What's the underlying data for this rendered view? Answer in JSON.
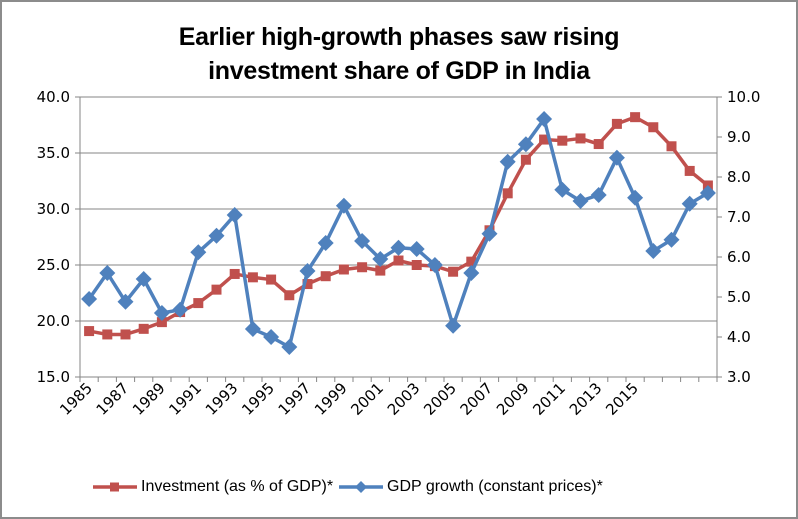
{
  "chart_data": {
    "type": "line",
    "title": "Earlier high-growth phases saw rising investment share of GDP in India",
    "title_lines": [
      "Earlier high-growth phases saw rising",
      "investment share of GDP in India"
    ],
    "xlabel": "",
    "ylabel_left": "",
    "ylabel_right": "",
    "categories": [
      "1985",
      "1986",
      "1987",
      "1988",
      "1989",
      "1990",
      "1991",
      "1992",
      "1993",
      "1994",
      "1995",
      "1996",
      "1997",
      "1998",
      "1999",
      "2000",
      "2001",
      "2002",
      "2003",
      "2004",
      "2005",
      "2006",
      "2007",
      "2008",
      "2009",
      "2010",
      "2011",
      "2012",
      "2013",
      "2014",
      "2015",
      "2016",
      "2017",
      "2018",
      "2019"
    ],
    "x_tick_labels": [
      "1985",
      "1987",
      "1989",
      "1991",
      "1993",
      "1995",
      "1997",
      "1999",
      "2001",
      "2003",
      "2005",
      "2007",
      "2009",
      "2011",
      "2013",
      "2015"
    ],
    "y_left": {
      "min": 15,
      "max": 40,
      "step": 5,
      "tick_labels": [
        "15.0",
        "20.0",
        "25.0",
        "30.0",
        "35.0",
        "40.0"
      ]
    },
    "y_right": {
      "min": 3,
      "max": 10,
      "step": 1,
      "tick_labels": [
        "3.0",
        "4.0",
        "5.0",
        "6.0",
        "7.0",
        "8.0",
        "9.0",
        "10.0"
      ]
    },
    "grid": "horizontal, left axis",
    "legend_position": "bottom",
    "series": [
      {
        "name": "Investment (as % of GDP)*",
        "axis": "left",
        "marker": "square",
        "color": "#c0504d",
        "values": [
          19.1,
          18.8,
          18.8,
          19.3,
          19.9,
          20.8,
          21.6,
          22.8,
          24.2,
          23.9,
          23.7,
          22.3,
          23.3,
          24.0,
          24.6,
          24.8,
          24.5,
          25.4,
          25.0,
          24.9,
          24.4,
          25.3,
          28.1,
          31.4,
          34.4,
          36.2,
          36.1,
          36.3,
          35.8,
          37.6,
          38.2,
          37.3,
          35.6,
          33.4,
          32.1
        ]
      },
      {
        "name": "GDP growth (constant prices)*",
        "axis": "right",
        "marker": "diamond",
        "color": "#4f81bd",
        "values": [
          4.95,
          5.6,
          4.88,
          5.45,
          4.6,
          4.68,
          6.12,
          6.53,
          7.05,
          4.2,
          4.0,
          3.75,
          5.65,
          6.35,
          7.28,
          6.4,
          5.95,
          6.23,
          6.2,
          5.8,
          4.28,
          5.6,
          6.58,
          8.38,
          8.82,
          9.45,
          7.68,
          7.4,
          7.55,
          8.48,
          7.48,
          6.15,
          6.43,
          7.33,
          7.6
        ]
      }
    ]
  },
  "legend": {
    "items": [
      {
        "label": "Investment (as % of GDP)*",
        "color": "#c0504d",
        "marker": "square"
      },
      {
        "label": "GDP growth (constant prices)*",
        "color": "#4f81bd",
        "marker": "diamond"
      }
    ]
  },
  "colors": {
    "grid": "#868686",
    "axis": "#868686",
    "border": "#8c8c8c"
  }
}
